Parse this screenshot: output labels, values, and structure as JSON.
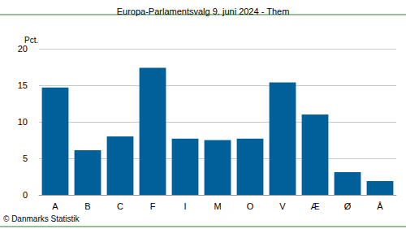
{
  "chart_data": {
    "type": "bar",
    "title": "Europa-Parlamentsvalg 9. juni 2024 - Them",
    "ylabel": "Pct.",
    "source": "© Danmarks Statistik",
    "categories": [
      "A",
      "B",
      "C",
      "F",
      "I",
      "M",
      "O",
      "V",
      "Æ",
      "Ø",
      "Å"
    ],
    "values": [
      14.7,
      6.1,
      8.0,
      17.4,
      7.7,
      7.5,
      7.7,
      15.4,
      11.0,
      3.1,
      1.9
    ],
    "color": "#00619a",
    "ylim": [
      0,
      20
    ],
    "yticks": [
      0,
      5,
      10,
      15,
      20
    ],
    "grid": true
  }
}
